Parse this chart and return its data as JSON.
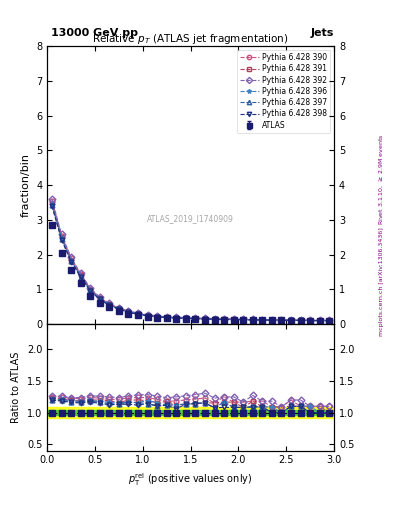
{
  "title_top": "13000 GeV pp",
  "title_right": "Jets",
  "plot_title": "Relative $p_T$ (ATLAS jet fragmentation)",
  "xlabel": "$p_{\\mathrm{T}}^{\\mathrm{rel}}$ (positive values only)",
  "ylabel_main": "fraction/bin",
  "ylabel_ratio": "Ratio to ATLAS",
  "right_label": "Rivet 3.1.10, $\\geq$ 2.9M events\nmcplots.cern.ch [arXiv:1306.3436]",
  "watermark": "ATLAS_2019_I1740909",
  "xlim": [
    0,
    3
  ],
  "ylim_main": [
    0,
    8
  ],
  "ylim_ratio": [
    0.4,
    2.4
  ],
  "yticks_main": [
    0,
    1,
    2,
    3,
    4,
    5,
    6,
    7,
    8
  ],
  "yticks_ratio": [
    0.5,
    1.0,
    1.5,
    2.0
  ],
  "data_x": [
    0.05,
    0.15,
    0.25,
    0.35,
    0.45,
    0.55,
    0.65,
    0.75,
    0.85,
    0.95,
    1.05,
    1.15,
    1.25,
    1.35,
    1.45,
    1.55,
    1.65,
    1.75,
    1.85,
    1.95,
    2.05,
    2.15,
    2.25,
    2.35,
    2.45,
    2.55,
    2.65,
    2.75,
    2.85,
    2.95
  ],
  "atlas_y": [
    2.85,
    2.05,
    1.55,
    1.18,
    0.82,
    0.62,
    0.48,
    0.38,
    0.3,
    0.25,
    0.21,
    0.19,
    0.17,
    0.16,
    0.15,
    0.14,
    0.13,
    0.13,
    0.12,
    0.12,
    0.12,
    0.11,
    0.11,
    0.11,
    0.11,
    0.1,
    0.1,
    0.1,
    0.1,
    0.1
  ],
  "atlas_err": [
    0.05,
    0.04,
    0.03,
    0.025,
    0.02,
    0.015,
    0.012,
    0.01,
    0.008,
    0.007,
    0.006,
    0.005,
    0.005,
    0.004,
    0.004,
    0.004,
    0.003,
    0.003,
    0.003,
    0.003,
    0.003,
    0.003,
    0.003,
    0.003,
    0.003,
    0.003,
    0.003,
    0.003,
    0.003,
    0.003
  ],
  "pythia_390_y": [
    3.55,
    2.55,
    1.9,
    1.44,
    1.02,
    0.76,
    0.58,
    0.46,
    0.37,
    0.31,
    0.26,
    0.23,
    0.2,
    0.19,
    0.18,
    0.17,
    0.16,
    0.15,
    0.15,
    0.14,
    0.14,
    0.13,
    0.13,
    0.12,
    0.12,
    0.12,
    0.11,
    0.11,
    0.11,
    0.11
  ],
  "pythia_391_y": [
    3.5,
    2.5,
    1.85,
    1.4,
    0.99,
    0.74,
    0.57,
    0.44,
    0.36,
    0.3,
    0.25,
    0.22,
    0.2,
    0.18,
    0.17,
    0.16,
    0.15,
    0.15,
    0.14,
    0.14,
    0.13,
    0.13,
    0.12,
    0.12,
    0.12,
    0.11,
    0.11,
    0.11,
    0.11,
    0.1
  ],
  "pythia_392_y": [
    3.6,
    2.58,
    1.92,
    1.46,
    1.04,
    0.78,
    0.6,
    0.47,
    0.38,
    0.32,
    0.27,
    0.24,
    0.21,
    0.2,
    0.19,
    0.18,
    0.17,
    0.16,
    0.15,
    0.15,
    0.14,
    0.14,
    0.13,
    0.13,
    0.12,
    0.12,
    0.12,
    0.11,
    0.11,
    0.11
  ],
  "pythia_396_y": [
    3.45,
    2.48,
    1.84,
    1.39,
    0.98,
    0.73,
    0.56,
    0.44,
    0.35,
    0.29,
    0.25,
    0.22,
    0.19,
    0.18,
    0.17,
    0.16,
    0.15,
    0.14,
    0.14,
    0.13,
    0.13,
    0.12,
    0.12,
    0.12,
    0.11,
    0.11,
    0.11,
    0.11,
    0.1,
    0.1
  ],
  "pythia_397_y": [
    3.42,
    2.45,
    1.82,
    1.37,
    0.97,
    0.72,
    0.55,
    0.43,
    0.35,
    0.29,
    0.24,
    0.21,
    0.19,
    0.18,
    0.17,
    0.16,
    0.15,
    0.14,
    0.14,
    0.13,
    0.13,
    0.12,
    0.12,
    0.11,
    0.11,
    0.11,
    0.11,
    0.1,
    0.1,
    0.1
  ],
  "pythia_398_y": [
    3.4,
    2.43,
    1.8,
    1.36,
    0.96,
    0.71,
    0.54,
    0.43,
    0.34,
    0.28,
    0.24,
    0.21,
    0.19,
    0.17,
    0.17,
    0.16,
    0.15,
    0.14,
    0.13,
    0.13,
    0.13,
    0.12,
    0.12,
    0.11,
    0.11,
    0.11,
    0.11,
    0.1,
    0.1,
    0.1
  ],
  "color_390": "#c8507d",
  "color_391": "#b04060",
  "color_392": "#8060b0",
  "color_396": "#4080c0",
  "color_397": "#3060a0",
  "color_398": "#203080",
  "color_atlas": "#1a1a6e",
  "green_band_ratio": 0.04,
  "yellow_band_ratio": 0.09
}
